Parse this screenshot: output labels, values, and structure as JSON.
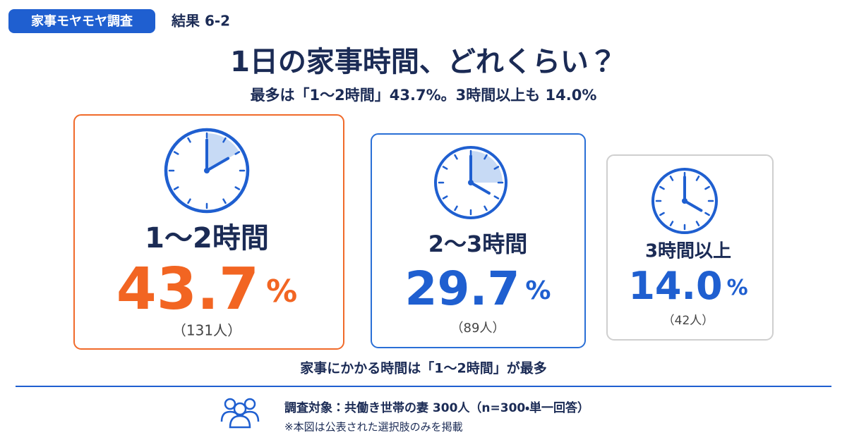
{
  "header": {
    "tag": "家事モヤモヤ調査",
    "section": "結果 6-2"
  },
  "title": "1日の家事時間、どれくらい？",
  "subtitle": "最多は「1〜2時間」43.7%。3時間以上も 14.0%",
  "cards": [
    {
      "label": "1〜2時間",
      "value": "43.7",
      "unit": "%",
      "count": "（131人）"
    },
    {
      "label": "2〜3時間",
      "value": "29.7",
      "unit": "%",
      "count": "（89人）"
    },
    {
      "label": "3時間以上",
      "value": "14.0",
      "unit": "%",
      "count": "（42人）"
    }
  ],
  "conclusion": "家事にかかる時間は「1〜2時間」が最多",
  "footer": {
    "survey": "調査対象：共働き世帯の妻 300人（n=300・単一回答）",
    "note": "※本図は公表された選択肢のみを掲載"
  }
}
